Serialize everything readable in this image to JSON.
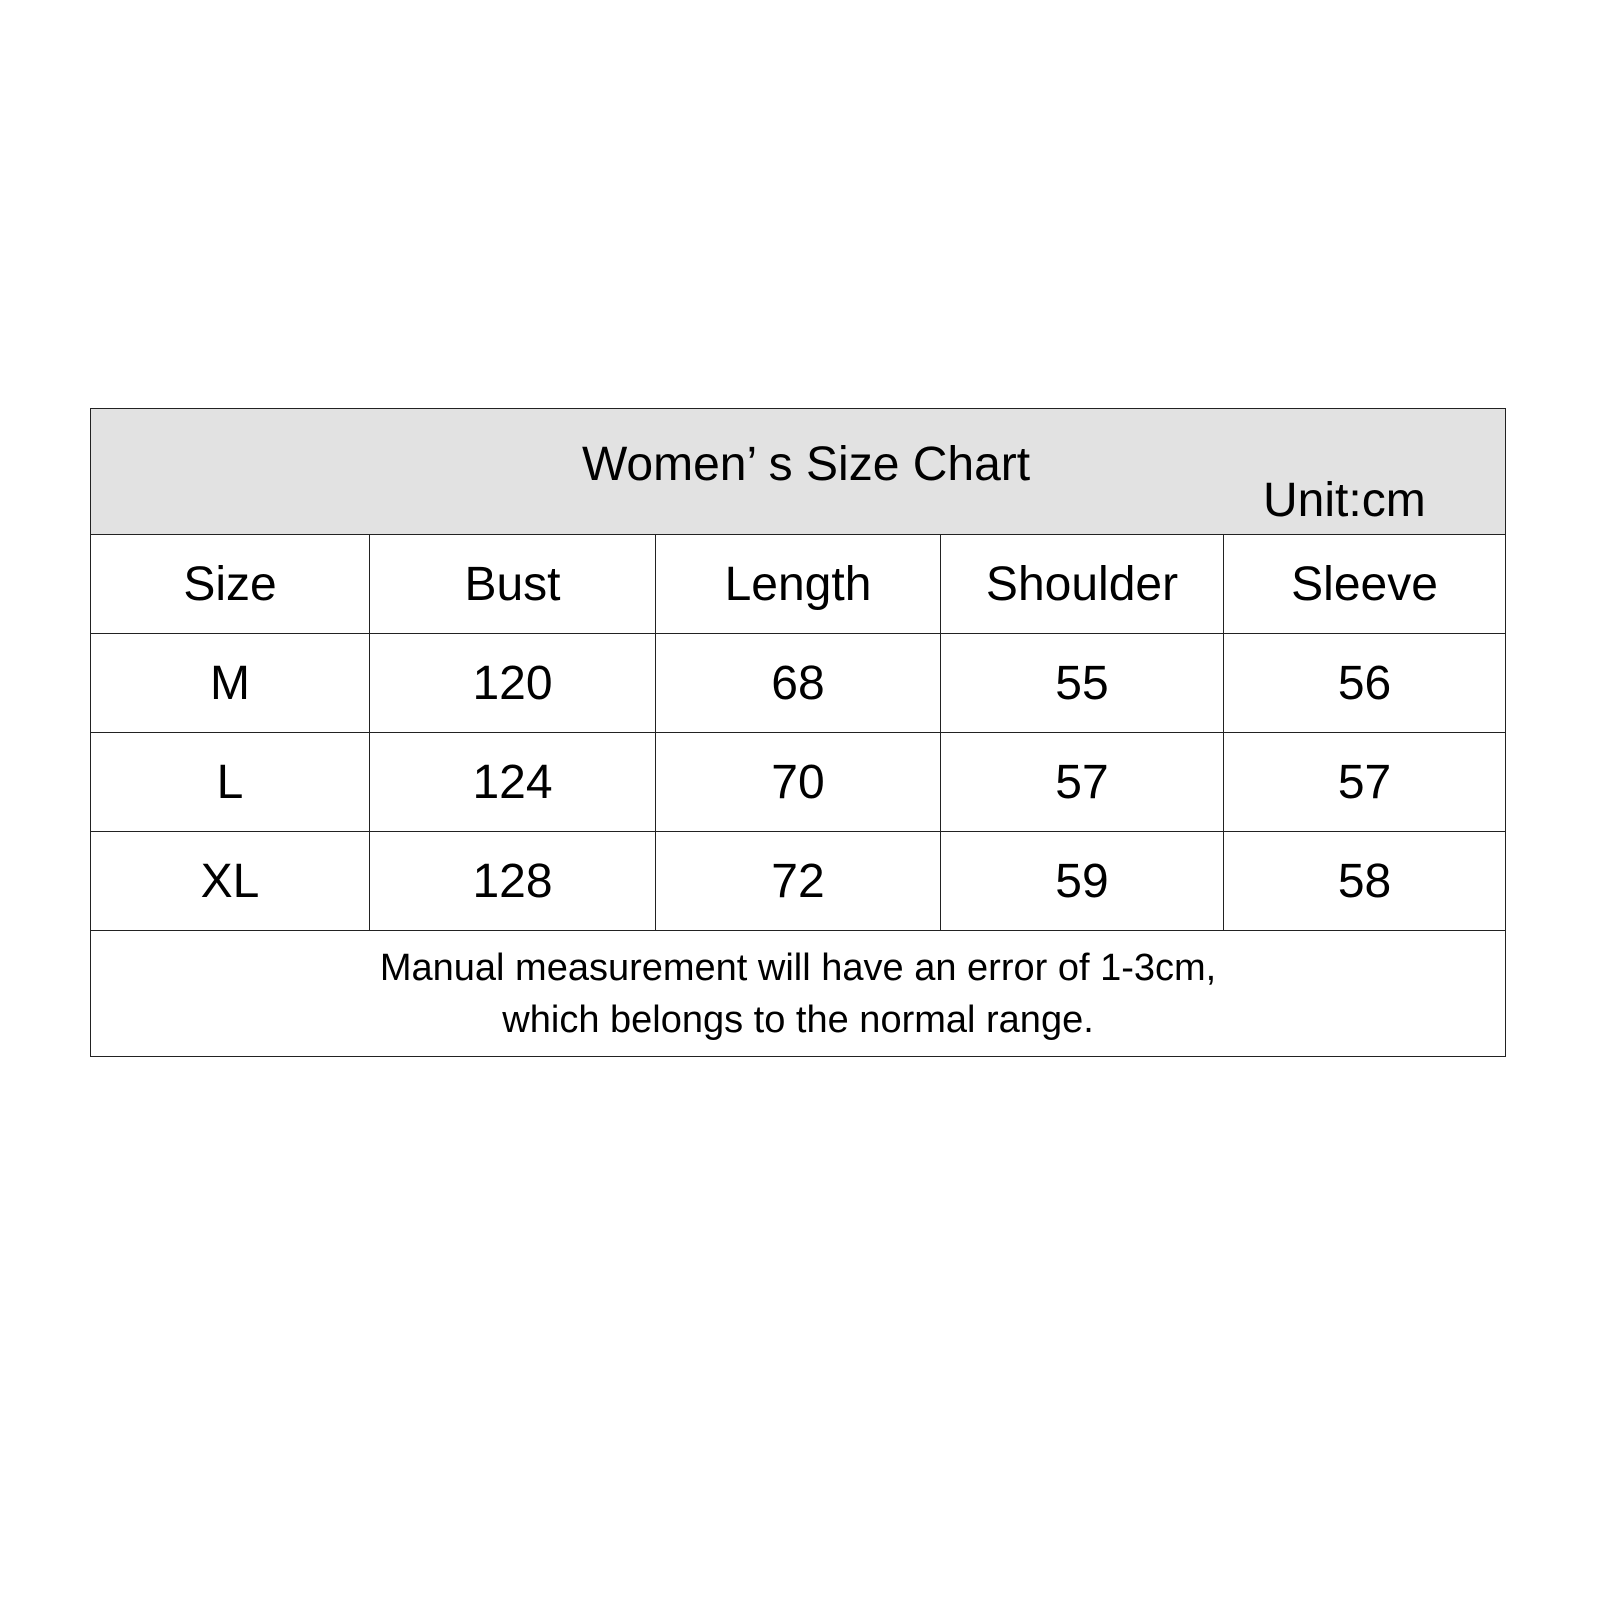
{
  "title": "Women’ s Size Chart",
  "unit": "Unit:cm",
  "columns": [
    "Size",
    "Bust",
    "Length",
    "Shoulder",
    "Sleeve"
  ],
  "rows": [
    [
      "M",
      "120",
      "68",
      "55",
      "56"
    ],
    [
      "L",
      "124",
      "70",
      "57",
      "57"
    ],
    [
      "XL",
      "128",
      "72",
      "59",
      "58"
    ]
  ],
  "note": {
    "line1": "Manual measurement will have an error of 1-3cm,",
    "line2": "which belongs to the normal range."
  },
  "colors": {
    "header_bg": "#e2e2e2",
    "border": "#222222"
  }
}
